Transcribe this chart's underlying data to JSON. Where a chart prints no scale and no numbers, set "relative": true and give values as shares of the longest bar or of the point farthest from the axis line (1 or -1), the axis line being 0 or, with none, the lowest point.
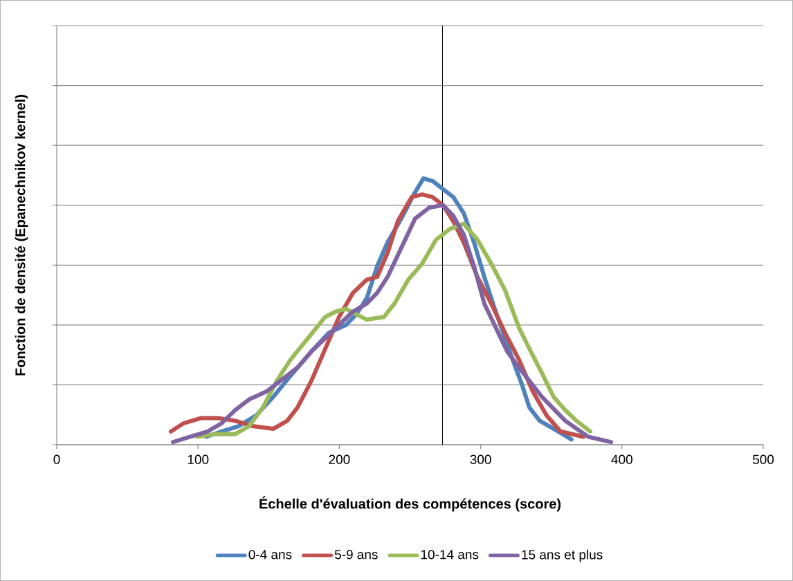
{
  "chart_data": {
    "type": "line",
    "relative": true,
    "xlabel": "Échelle d'évaluation des compétences (score)",
    "ylabel": "Fonction de densité (Epanechnikov kernel)",
    "xlim": [
      0,
      500
    ],
    "xticks": [
      0,
      100,
      200,
      300,
      400,
      500
    ],
    "grid": "y",
    "legend": "bottom",
    "marker": "none",
    "line_style": "solid",
    "tick_labels": "x",
    "ref_lines": [
      {
        "axis": "x",
        "value": 273,
        "color": "#000000"
      }
    ],
    "series": [
      {
        "name": "0-4 ans",
        "color": "#4f81bd",
        "x": [
          105.8,
          116.6,
          128.8,
          141.1,
          153.3,
          165.6,
          180.2,
          192.5,
          204.7,
          212.0,
          219.4,
          226.7,
          234.1,
          243.9,
          252.7,
          259.5,
          266.2,
          273.3,
          280.6,
          288.0,
          295.3,
          302.6,
          310.0,
          317.3,
          324.7,
          329.6,
          334.5,
          341.8,
          351.6,
          364.3
        ],
        "values": [
          0.03,
          0.05,
          0.07,
          0.11,
          0.18,
          0.26,
          0.35,
          0.42,
          0.45,
          0.49,
          0.55,
          0.67,
          0.76,
          0.85,
          0.94,
          1.0,
          0.99,
          0.96,
          0.93,
          0.87,
          0.76,
          0.63,
          0.51,
          0.4,
          0.29,
          0.22,
          0.14,
          0.09,
          0.06,
          0.02
        ]
      },
      {
        "name": "5-9 ans",
        "color": "#c0504d",
        "x": [
          80.8,
          89.6,
          101.9,
          114.1,
          126.3,
          138.6,
          153.3,
          163.1,
          170.4,
          180.2,
          190.0,
          199.8,
          209.6,
          219.4,
          226.7,
          234.1,
          241.4,
          251.2,
          258.6,
          265.9,
          273.3,
          280.6,
          288.0,
          297.7,
          307.5,
          317.3,
          327.1,
          336.9,
          346.7,
          356.5,
          372.7
        ],
        "values": [
          0.05,
          0.08,
          0.1,
          0.1,
          0.09,
          0.07,
          0.06,
          0.09,
          0.14,
          0.24,
          0.36,
          0.48,
          0.57,
          0.62,
          0.63,
          0.72,
          0.84,
          0.93,
          0.94,
          0.93,
          0.9,
          0.84,
          0.76,
          0.63,
          0.53,
          0.42,
          0.32,
          0.2,
          0.11,
          0.05,
          0.03
        ]
      },
      {
        "name": "10-14 ans",
        "color": "#9bbb59",
        "x": [
          99.4,
          111.7,
          126.3,
          136.1,
          145.9,
          155.7,
          165.5,
          177.8,
          190.0,
          197.4,
          204.7,
          212.0,
          219.4,
          231.6,
          239.0,
          248.8,
          258.6,
          268.4,
          278.2,
          288.0,
          297.7,
          307.5,
          317.3,
          327.1,
          335.5,
          343.3,
          351.6,
          359.9,
          367.8,
          377.6
        ],
        "values": [
          0.03,
          0.04,
          0.04,
          0.07,
          0.14,
          0.24,
          0.32,
          0.4,
          0.48,
          0.5,
          0.51,
          0.49,
          0.47,
          0.48,
          0.53,
          0.62,
          0.68,
          0.77,
          0.81,
          0.83,
          0.77,
          0.68,
          0.58,
          0.44,
          0.35,
          0.27,
          0.18,
          0.13,
          0.09,
          0.05
        ]
      },
      {
        "name": "15 ans et plus",
        "color": "#8064a2",
        "x": [
          82.3,
          94.5,
          106.8,
          116.6,
          126.3,
          136.1,
          148.4,
          160.6,
          170.4,
          180.2,
          190.0,
          199.8,
          209.6,
          219.4,
          226.7,
          234.1,
          243.9,
          253.7,
          263.5,
          273.3,
          280.6,
          288.0,
          295.3,
          302.6,
          318.8,
          327.1,
          343.3,
          359.9,
          376.1,
          392.3
        ],
        "values": [
          0.01,
          0.03,
          0.05,
          0.08,
          0.13,
          0.17,
          0.2,
          0.25,
          0.29,
          0.35,
          0.4,
          0.45,
          0.5,
          0.53,
          0.57,
          0.63,
          0.74,
          0.85,
          0.89,
          0.9,
          0.86,
          0.79,
          0.67,
          0.53,
          0.35,
          0.29,
          0.18,
          0.09,
          0.03,
          0.01
        ]
      }
    ]
  }
}
